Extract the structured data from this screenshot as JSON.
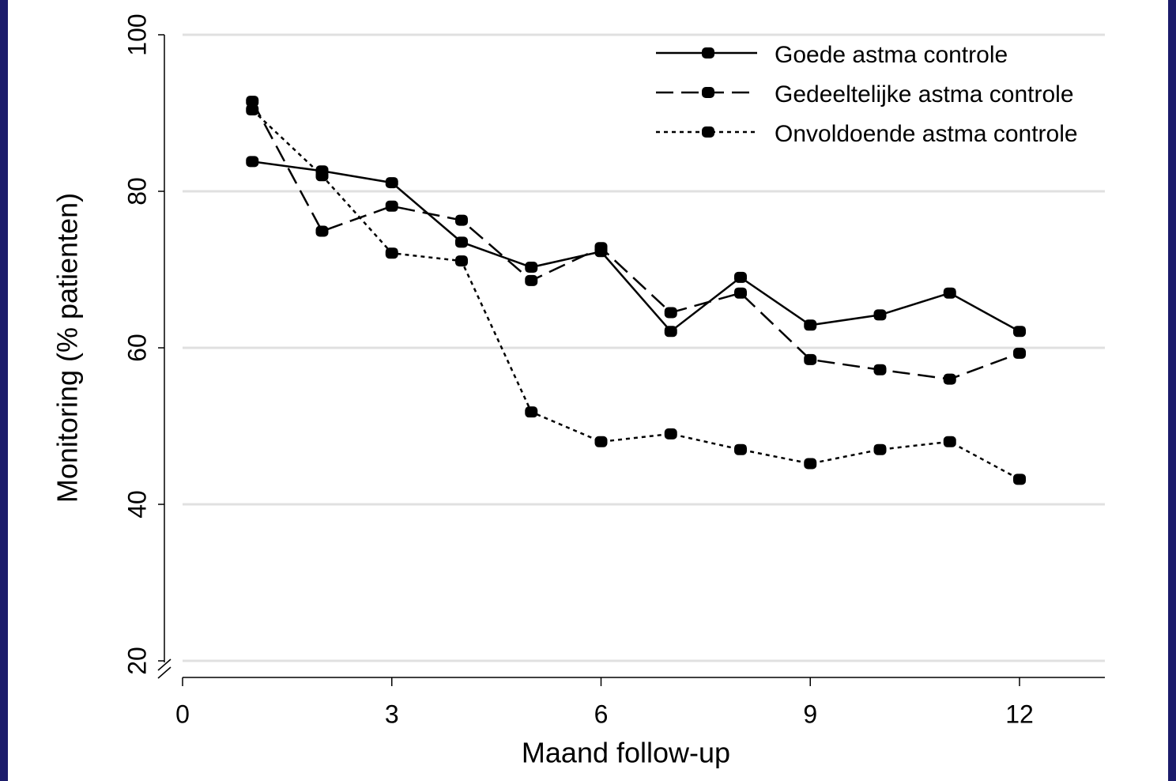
{
  "chart_data": {
    "type": "line",
    "x_label": "Maand follow-up",
    "y_label": "Monitoring (% patienten)",
    "x": [
      1,
      2,
      3,
      4,
      5,
      6,
      7,
      8,
      9,
      10,
      11,
      12
    ],
    "series": [
      {
        "name": "Goede astma controle",
        "color": "#000000",
        "dash": "solid",
        "values": [
          83.8,
          82.6,
          81.1,
          73.5,
          70.3,
          72.3,
          62.1,
          69,
          62.9,
          64.2,
          67,
          62.1
        ]
      },
      {
        "name": "Gedeeltelijke astma controle",
        "color": "#000000",
        "dash": "dashed",
        "values": [
          91.5,
          74.9,
          78.1,
          76.3,
          68.6,
          72.8,
          64.5,
          67,
          58.5,
          57.2,
          56,
          59.3
        ]
      },
      {
        "name": "Onvoldoende astma controle",
        "color": "#000000",
        "dash": "dotted",
        "values": [
          90.4,
          82,
          72.1,
          71.1,
          51.8,
          48,
          49,
          47,
          45.2,
          47,
          48,
          43.2
        ]
      }
    ],
    "xlim": [
      0,
      13.2
    ],
    "xticks": [
      0,
      3,
      6,
      9,
      12
    ],
    "ylim": [
      20,
      100
    ],
    "yticks": [
      20,
      40,
      60,
      80,
      100
    ],
    "grid": true,
    "legend": "upper right"
  }
}
